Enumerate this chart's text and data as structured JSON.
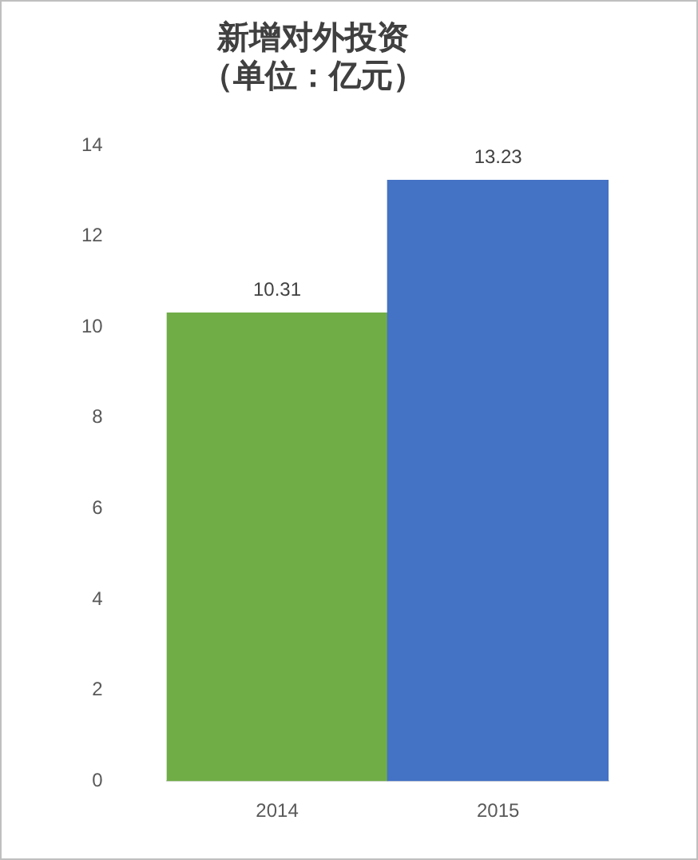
{
  "chart_data": {
    "type": "bar",
    "title": "新增对外投资",
    "subtitle": "（单位：亿元）",
    "categories": [
      "2014",
      "2015"
    ],
    "colors": [
      "#70ad47",
      "#4472c4"
    ],
    "values": [
      10.31,
      13.23
    ],
    "ylim": [
      0,
      14
    ],
    "yticks": [
      0,
      2,
      4,
      6,
      8,
      10,
      12,
      14
    ],
    "grid": false,
    "data_labels": true,
    "legend": false
  }
}
